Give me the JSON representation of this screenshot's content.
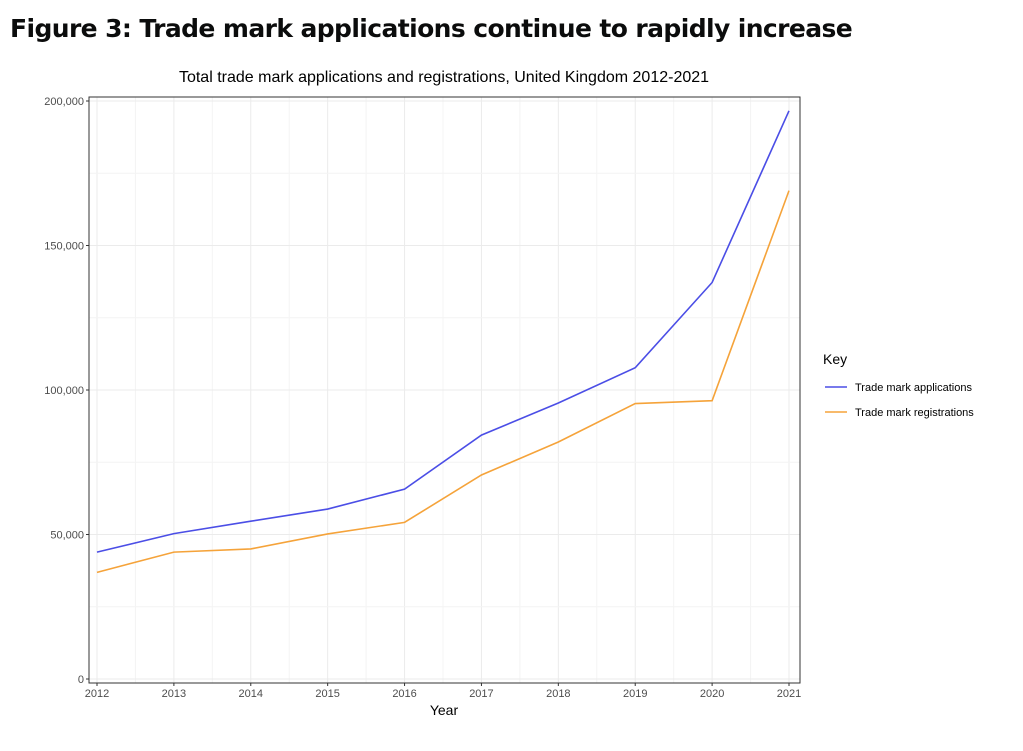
{
  "figure_title": "Figure 3: Trade mark applications continue to rapidly increase",
  "chart_data": {
    "type": "line",
    "title": "Total trade mark applications and registrations, United Kingdom 2012-2021",
    "xlabel": "Year",
    "ylabel": "",
    "x": [
      2012,
      2013,
      2014,
      2015,
      2016,
      2017,
      2018,
      2019,
      2020,
      2021
    ],
    "ylim": [
      0,
      200000
    ],
    "yticks": [
      0,
      50000,
      100000,
      150000,
      200000
    ],
    "ytick_labels": [
      "0",
      "50,000",
      "100,000",
      "150,000",
      "200,000"
    ],
    "xtick_labels": [
      "2012",
      "2013",
      "2014",
      "2015",
      "2016",
      "2017",
      "2018",
      "2019",
      "2020",
      "2021"
    ],
    "grid": true,
    "legend": {
      "title": "Key",
      "placement": "right"
    },
    "series": [
      {
        "name": "Trade mark applications",
        "color": "#4b4ee6",
        "values": [
          43900,
          50300,
          54600,
          58800,
          65700,
          84400,
          95500,
          107700,
          137200,
          196600
        ]
      },
      {
        "name": "Trade mark registrations",
        "color": "#f5a33a",
        "values": [
          36900,
          43900,
          45000,
          50200,
          54200,
          70600,
          82000,
          95300,
          96300,
          169000
        ]
      }
    ]
  }
}
